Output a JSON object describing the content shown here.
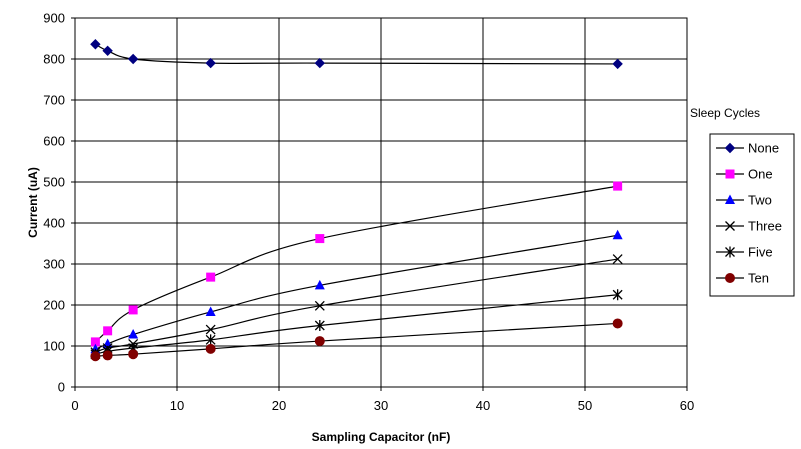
{
  "chart_data": {
    "type": "line",
    "title": "",
    "xlabel": "Sampling Capacitor (nF)",
    "ylabel": "Current (uA)",
    "xlim": [
      0,
      60
    ],
    "ylim": [
      0,
      900
    ],
    "xticks": [
      0,
      10,
      20,
      30,
      40,
      50,
      60
    ],
    "yticks": [
      0,
      100,
      200,
      300,
      400,
      500,
      600,
      700,
      800,
      900
    ],
    "grid": true,
    "legend_title": "Sleep Cycles",
    "legend_position": "right",
    "x": [
      2,
      3.2,
      5.7,
      13.3,
      24,
      53.2
    ],
    "series": [
      {
        "name": "None",
        "marker": "diamond",
        "color": "#000080",
        "values": [
          836,
          820,
          800,
          790,
          790,
          788
        ]
      },
      {
        "name": "One",
        "marker": "square",
        "color": "#ff00ff",
        "values": [
          110,
          137,
          188,
          268,
          362,
          490
        ]
      },
      {
        "name": "Two",
        "marker": "triangle",
        "color": "#0000ff",
        "values": [
          92,
          105,
          128,
          183,
          248,
          370
        ]
      },
      {
        "name": "Three",
        "marker": "x",
        "color": "#000000",
        "values": [
          85,
          95,
          105,
          140,
          198,
          312
        ]
      },
      {
        "name": "Five",
        "marker": "asterisk",
        "color": "#000000",
        "values": [
          80,
          87,
          95,
          115,
          150,
          225
        ]
      },
      {
        "name": "Ten",
        "marker": "circle",
        "color": "#800000",
        "values": [
          75,
          77,
          80,
          93,
          112,
          155
        ]
      }
    ]
  }
}
